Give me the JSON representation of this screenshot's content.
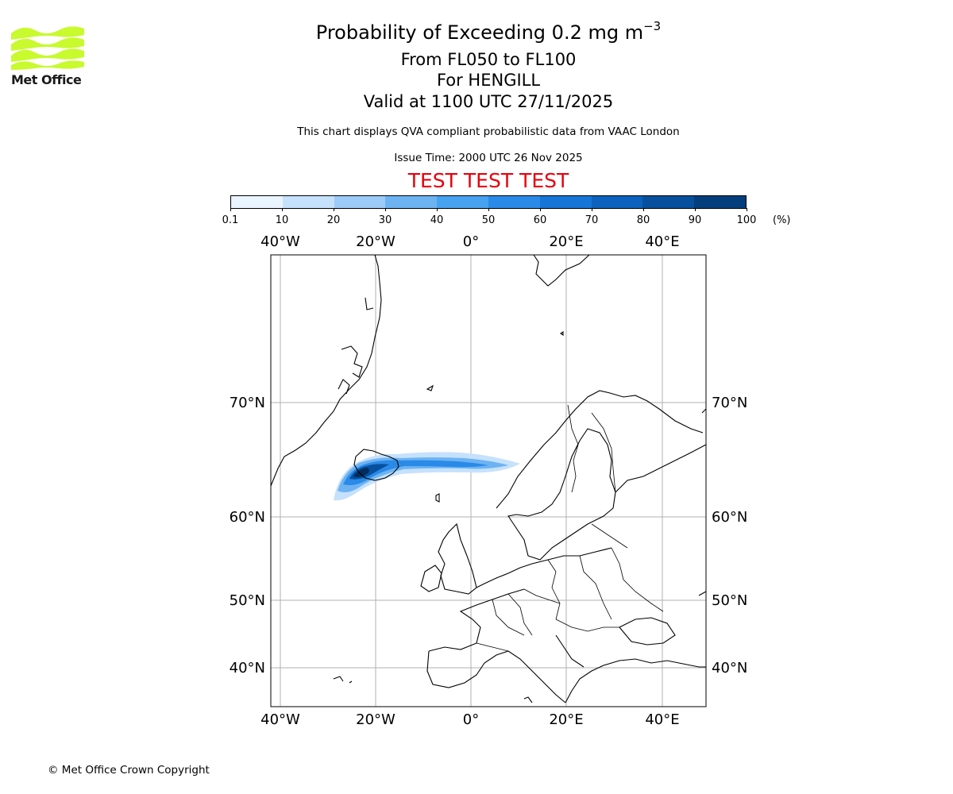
{
  "logo": {
    "org": "Met Office",
    "brand_color": "#c8fa2e"
  },
  "title": {
    "main": "Probability of Exceeding 0.2 mg m",
    "exponent": "−3",
    "levels": "From FL050 to FL100",
    "site": "For HENGILL",
    "valid": "Valid at 1100 UTC 27/11/2025",
    "description": "This chart displays QVA compliant probabilistic data from VAAC London",
    "issue_time": "Issue Time: 2000 UTC 26 Nov 2025",
    "test_banner": "TEST TEST TEST"
  },
  "colorbar": {
    "ticks": [
      "0.1",
      "10",
      "20",
      "30",
      "40",
      "50",
      "60",
      "70",
      "80",
      "90",
      "100"
    ],
    "unit": "(%)",
    "colors": [
      "#eaf4ff",
      "#c6e1fc",
      "#9ccbf7",
      "#6db3f2",
      "#47a2ef",
      "#2a8ae8",
      "#1676d7",
      "#0c62bd",
      "#07509e",
      "#043e7d",
      "#022c5c"
    ]
  },
  "map": {
    "lon_labels": [
      "40°W",
      "20°W",
      "0°",
      "20°E",
      "40°E"
    ],
    "lat_labels": [
      "70°N",
      "60°N",
      "50°N",
      "40°N"
    ],
    "lat_values": [
      70,
      60,
      50,
      40
    ],
    "lon_values": [
      -40,
      -20,
      0,
      20,
      40
    ]
  },
  "footer": {
    "copyright": "© Met Office Crown Copyright"
  }
}
